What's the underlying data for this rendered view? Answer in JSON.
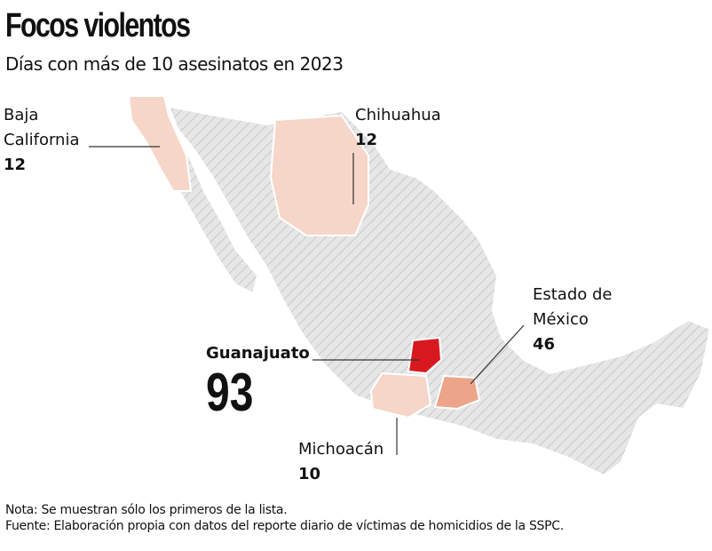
{
  "header": {
    "title": "Focos violentos",
    "subtitle": "Días con más de 10 asesinatos en 2023"
  },
  "regions": [
    {
      "name": "Baja California",
      "value": 12,
      "color": "#f6d6c9"
    },
    {
      "name": "Chihuahua",
      "value": 12,
      "color": "#f6d6c9"
    },
    {
      "name": "Guanajuato",
      "value": 93,
      "color": "#d7191f"
    },
    {
      "name": "Estado de México",
      "value": 46,
      "color": "#eda58a"
    },
    {
      "name": "Michoacán",
      "value": 10,
      "color": "#f6d6c9"
    }
  ],
  "notes": [
    "Nota: Se muestran sólo los primeros de la lista.",
    "Fuente: Elaboración propia con datos del reporte diario de víctimas de homicidios de la SSPC."
  ]
}
